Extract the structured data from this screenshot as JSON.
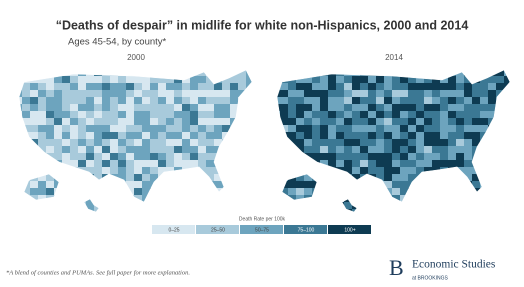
{
  "header": {
    "title": "“Deaths of despair” in midlife for white non-Hispanics, 2000 and 2014",
    "subtitle": "Ages 45-54, by county*"
  },
  "maps": [
    {
      "label": "2000",
      "bias": 0
    },
    {
      "label": "2014",
      "bias": 2
    }
  ],
  "legend": {
    "title": "Death Rate per 100k",
    "items": [
      {
        "label": "0–25",
        "color": "#d7e7f0"
      },
      {
        "label": "25–50",
        "color": "#a8cadb"
      },
      {
        "label": "50–75",
        "color": "#6da4be"
      },
      {
        "label": "75–100",
        "color": "#3b7894"
      },
      {
        "label": "100+",
        "color": "#0e3b52"
      }
    ]
  },
  "footnote": "*A blend of counties and PUMAs. See full paper for more explanation.",
  "logo": {
    "mark": "B",
    "name": "Economic Studies",
    "sub": "at BROOKINGS"
  }
}
